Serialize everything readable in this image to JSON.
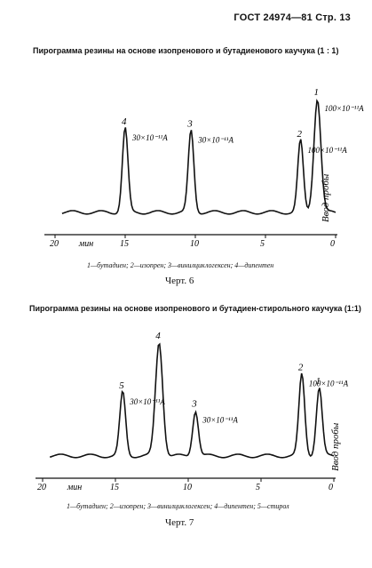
{
  "header": "ГОСТ 24974—81 Стр. 13",
  "chart_data": [
    {
      "type": "line",
      "title": "Пирограмма резины на основе изопренового и бутадиенового каучука (1 : 1)",
      "xlabel": "мин",
      "x_ticks": [
        "20",
        "15",
        "10",
        "5",
        "0"
      ],
      "xlim": [
        20,
        0
      ],
      "injection_label": "Ввод пробы",
      "peaks": [
        {
          "label": "4",
          "annotation": "30×10⁻¹¹A",
          "x": 15.0,
          "y": 0.74
        },
        {
          "label": "3",
          "annotation": "30×10⁻¹¹A",
          "x": 10.3,
          "y": 0.72
        },
        {
          "label": "2",
          "annotation": "100×10⁻¹¹A",
          "x": 2.5,
          "y": 0.63
        },
        {
          "label": "1",
          "annotation": "100×10⁻¹¹A",
          "x": 1.3,
          "y": 1.0
        }
      ],
      "legend": "1—бутадиен; 2—изопрен; 3—винилциклогексен; 4—дипентен",
      "figure_label": "Черт. 6"
    },
    {
      "type": "line",
      "title": "Пирограмма резины на основе изопренового и бутадиен-стирольного каучука (1:1)",
      "xlabel": "мин",
      "x_ticks": [
        "20",
        "15",
        "10",
        "5",
        "0"
      ],
      "xlim": [
        20,
        0
      ],
      "injection_label": "Ввод пробы",
      "peaks": [
        {
          "label": "5",
          "annotation": "30×10⁻¹¹A",
          "x": 14.5,
          "y": 0.56
        },
        {
          "label": "4",
          "annotation": "",
          "x": 12.0,
          "y": 1.0
        },
        {
          "label": "3",
          "annotation": "30×10⁻¹¹A",
          "x": 9.5,
          "y": 0.4
        },
        {
          "label": "2",
          "annotation": "100×10⁻¹¹A",
          "x": 2.2,
          "y": 0.72
        },
        {
          "label": "1",
          "annotation": "",
          "x": 1.0,
          "y": 0.6
        }
      ],
      "legend": "1—бутадиен; 2—изопрен; 3—винилциклогексен; 4—дипентен; 5—стирол",
      "figure_label": "Черт. 7"
    }
  ]
}
